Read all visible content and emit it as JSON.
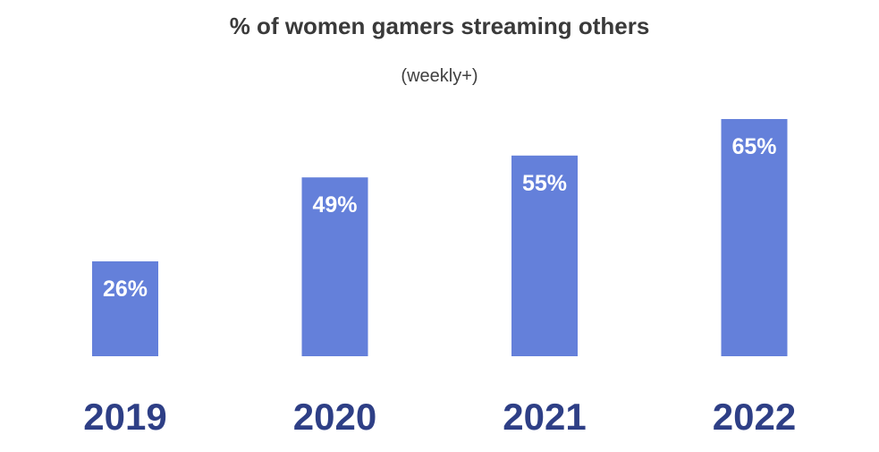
{
  "chart_data": {
    "type": "bar",
    "title": "% of women gamers streaming others",
    "subtitle": "(weekly+)",
    "categories": [
      "2019",
      "2020",
      "2021",
      "2022"
    ],
    "values": [
      26,
      49,
      55,
      65
    ],
    "data_labels": [
      "26%",
      "49%",
      "55%",
      "65%"
    ],
    "xlabel": "",
    "ylabel": "",
    "ylim": [
      0,
      65
    ],
    "grid": false,
    "legend": "none",
    "colors": {
      "bar": "#6480DA",
      "bar_label": "#FFFFFF",
      "tick_label": "#2E3F86",
      "title": "#3A3A3A"
    }
  }
}
